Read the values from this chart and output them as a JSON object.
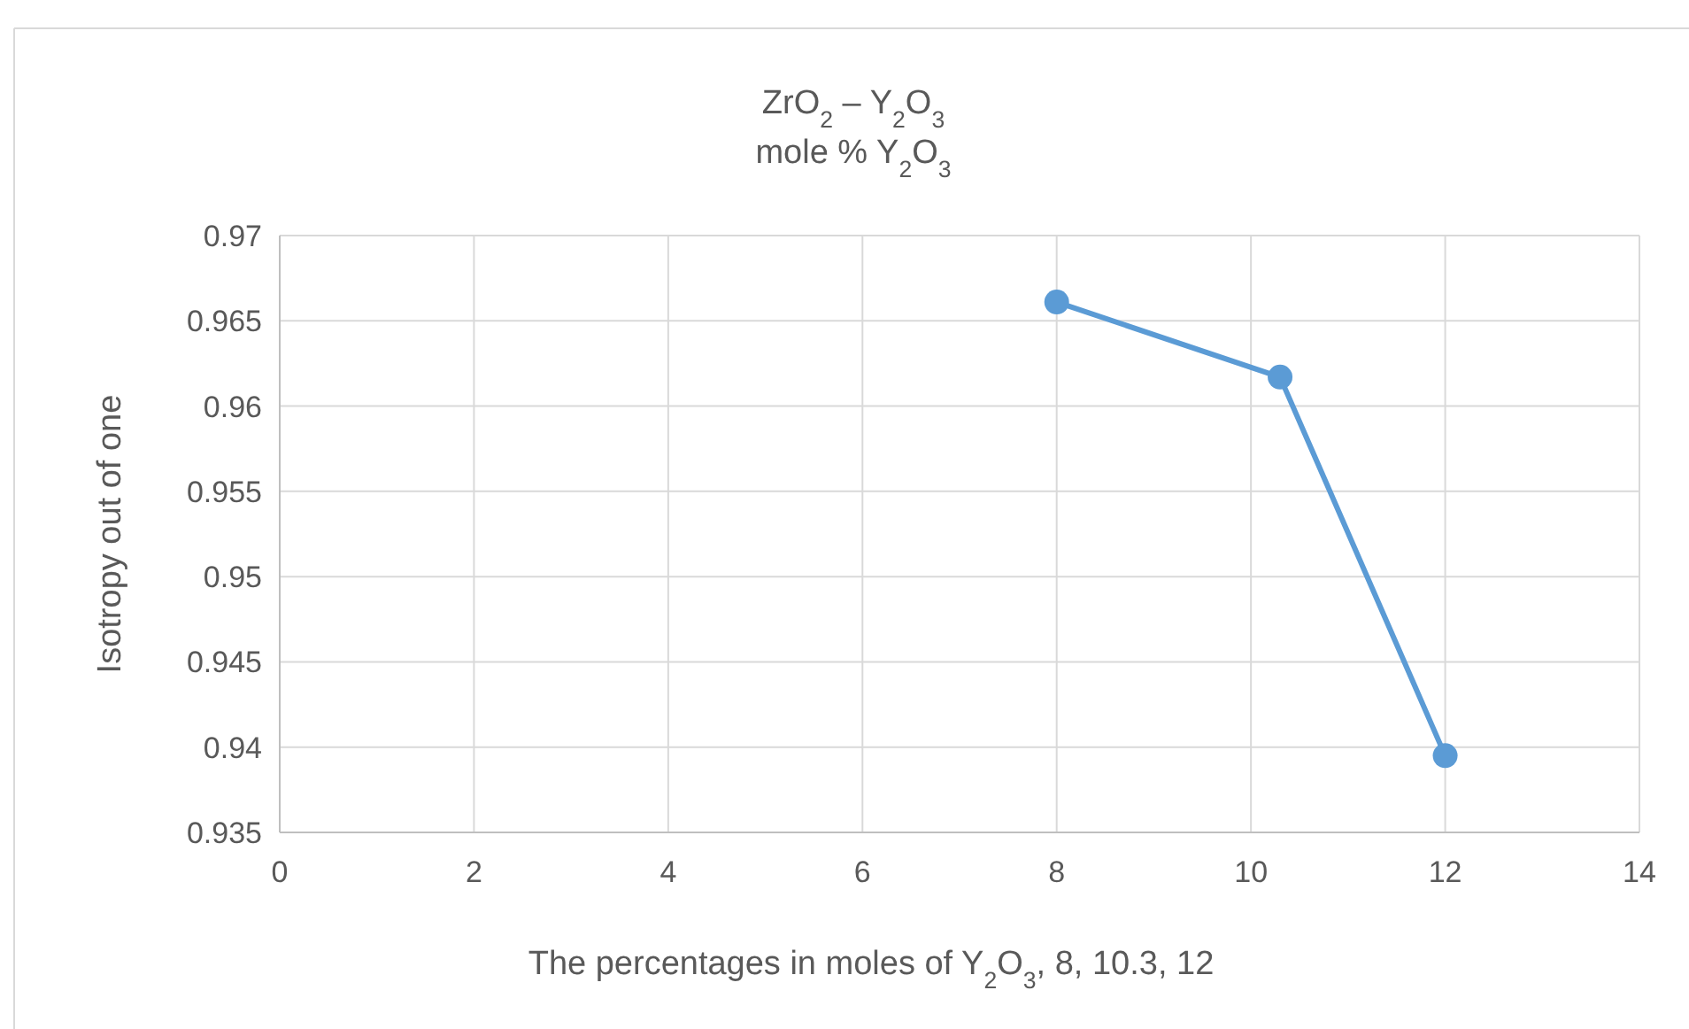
{
  "chart_data": {
    "type": "line",
    "title": "ZrO$_{2}$ – Y$_{2}$O$_{3}$",
    "subtitle": "mole % Y$_{2}$O$_{3}$",
    "xlabel": "The percentages in moles of Y$_{2}$O$_{3}$, 8, 10.3, 12",
    "ylabel": "Isotropy out of one",
    "x": [
      8,
      10.3,
      12
    ],
    "series": [
      {
        "color": "#5b9bd5",
        "values": [
          0.9661,
          0.9617,
          0.9395
        ]
      }
    ],
    "xlim": [
      0,
      14
    ],
    "xticks": [
      0,
      2,
      4,
      6,
      8,
      10,
      12,
      14
    ],
    "ylim": [
      0.935,
      0.97
    ],
    "yticks": [
      0.935,
      0.94,
      0.945,
      0.95,
      0.955,
      0.96,
      0.965,
      0.97
    ],
    "grid": true,
    "marker": "circle",
    "line_style": "solid"
  }
}
